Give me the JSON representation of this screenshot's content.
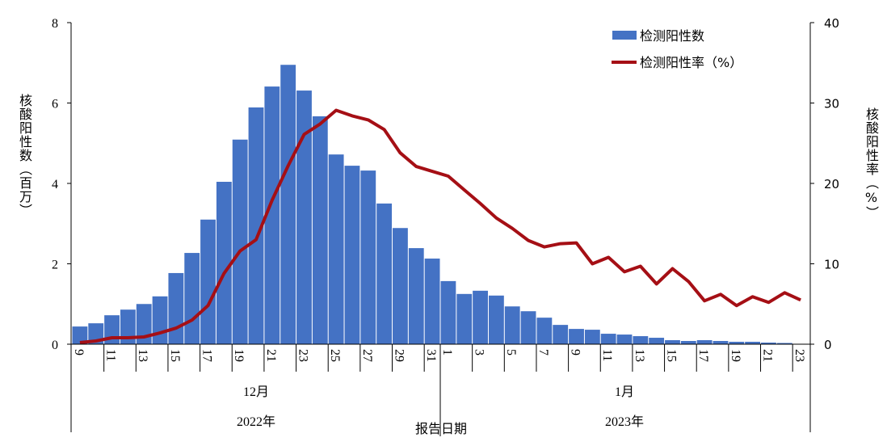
{
  "chart_data": {
    "type": "bar+line",
    "title": "",
    "xlabel": "报告日期",
    "ylabel_left": "核酸阳性数（百万）",
    "ylabel_right": "核酸阳性率（%）",
    "ylim_left": [
      0,
      8
    ],
    "yticks_left": [
      "0",
      "2",
      "4",
      "6",
      "8"
    ],
    "ylim_right": [
      0,
      40
    ],
    "yticks_right": [
      "0",
      "10",
      "20",
      "30",
      "40"
    ],
    "grid": false,
    "legend_position": "top-right",
    "months": [
      {
        "label": "12月",
        "year": "2022年",
        "days": [
          9,
          10,
          11,
          12,
          13,
          14,
          15,
          16,
          17,
          18,
          19,
          20,
          21,
          22,
          23,
          24,
          25,
          26,
          27,
          28,
          29,
          30,
          31
        ]
      },
      {
        "label": "1月",
        "year": "2023年",
        "days": [
          1,
          2,
          3,
          4,
          5,
          6,
          7,
          8,
          9,
          10,
          11,
          12,
          13,
          14,
          15,
          16,
          17,
          18,
          19,
          20,
          21,
          22,
          23
        ]
      }
    ],
    "series": [
      {
        "name": "检测阳性数",
        "type": "bar",
        "axis": "left",
        "color": "#4472C4",
        "values": [
          0.44,
          0.52,
          0.72,
          0.86,
          1.0,
          1.19,
          1.77,
          2.27,
          3.1,
          4.04,
          5.09,
          5.89,
          6.41,
          6.95,
          6.31,
          5.67,
          4.72,
          4.44,
          4.32,
          3.5,
          2.89,
          2.39,
          2.13,
          1.57,
          1.25,
          1.33,
          1.21,
          0.94,
          0.82,
          0.66,
          0.48,
          0.38,
          0.36,
          0.26,
          0.24,
          0.2,
          0.16,
          0.1,
          0.08,
          0.1,
          0.08,
          0.06,
          0.06,
          0.04,
          0.03,
          0.01
        ]
      },
      {
        "name": "检测阳性率（%）",
        "type": "line",
        "axis": "right",
        "color": "#A50F15",
        "values": [
          0.2,
          0.4,
          0.8,
          0.8,
          0.9,
          1.4,
          2.0,
          3.0,
          4.8,
          8.8,
          11.6,
          13.0,
          17.9,
          22.2,
          26.1,
          27.4,
          29.1,
          28.4,
          27.9,
          26.7,
          23.8,
          22.1,
          21.5,
          20.9,
          19.2,
          17.5,
          15.7,
          14.4,
          12.9,
          12.1,
          12.5,
          12.6,
          10.0,
          10.8,
          9.0,
          9.7,
          7.5,
          9.4,
          7.8,
          5.4,
          6.2,
          4.8,
          5.9,
          5.2,
          6.4,
          5.5
        ]
      }
    ]
  }
}
